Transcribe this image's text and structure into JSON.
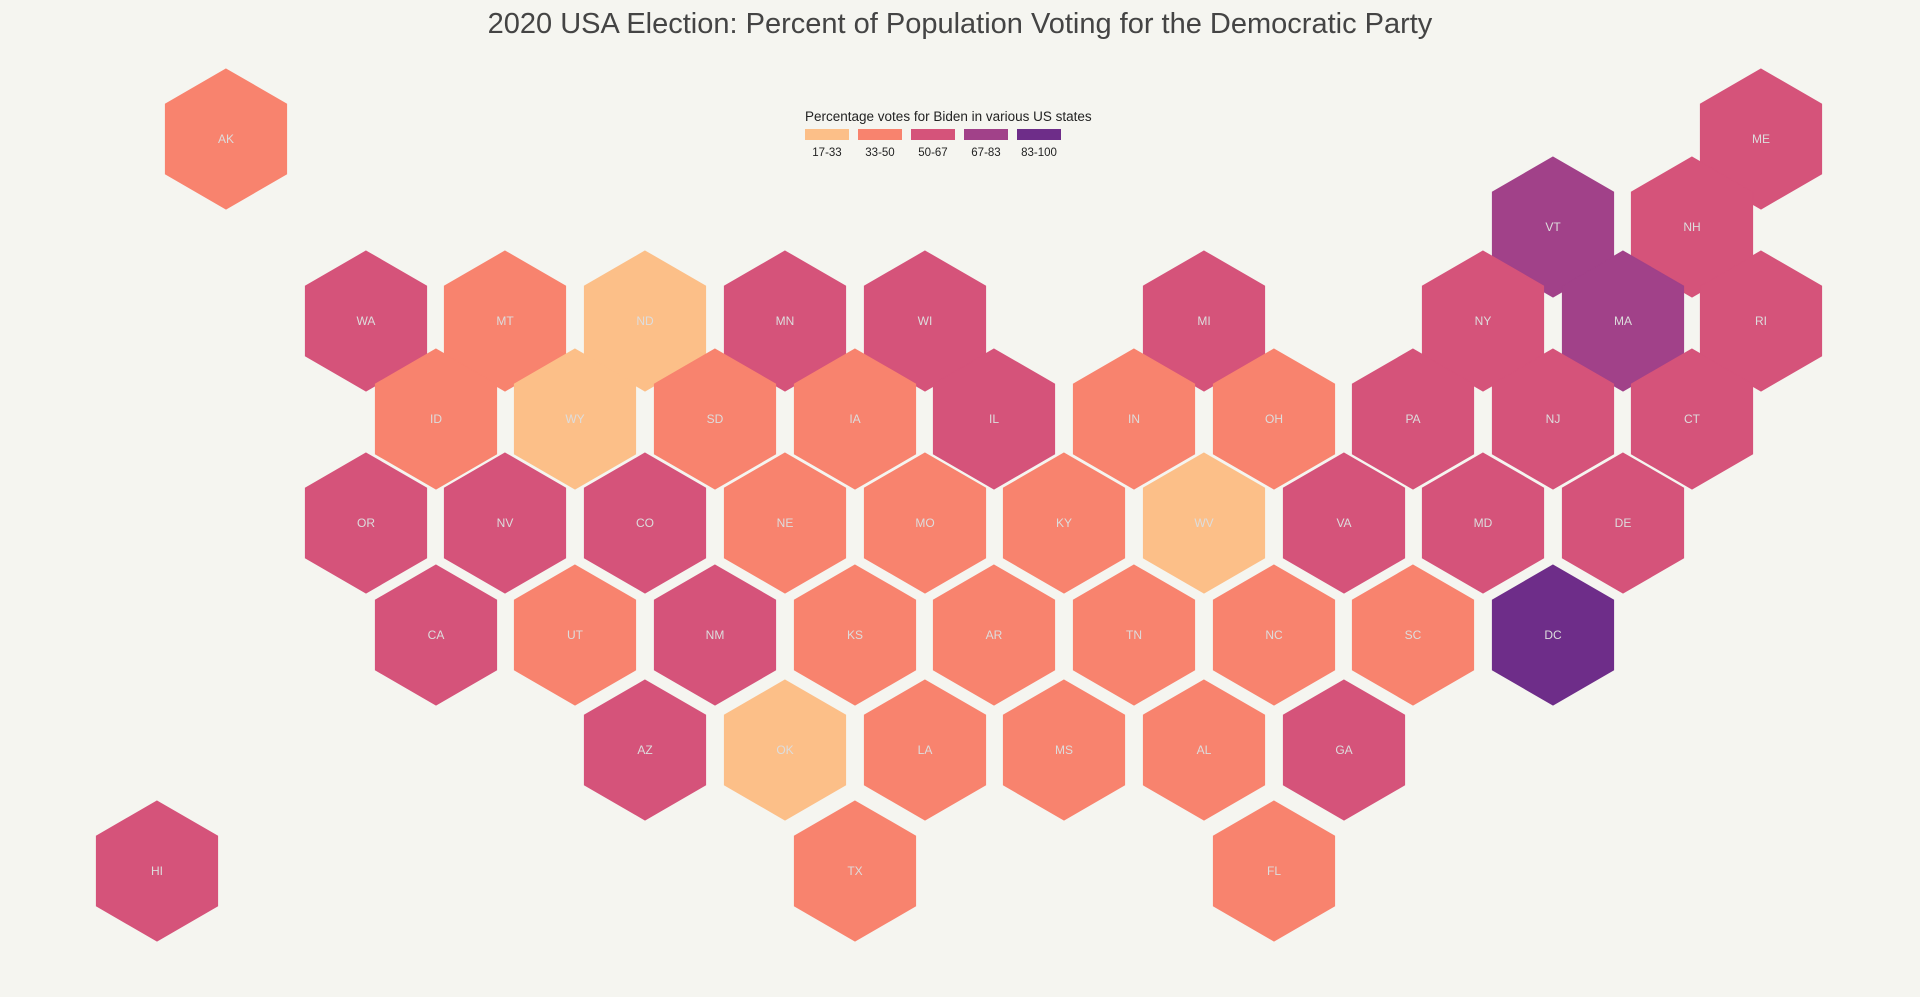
{
  "title": "2020 USA Election: Percent of Population Voting for the Democratic Party",
  "legend": {
    "title": "Percentage votes for Biden in various US states",
    "bins": [
      {
        "label": "17-33",
        "color": "#fcbf88"
      },
      {
        "label": "33-50",
        "color": "#f8836e"
      },
      {
        "label": "50-67",
        "color": "#d5537a"
      },
      {
        "label": "67-83",
        "color": "#a14189"
      },
      {
        "label": "83-100",
        "color": "#6e2d89"
      }
    ]
  },
  "chart_data": {
    "type": "hex-tile-map",
    "title": "2020 USA Election: Percent of Population Voting for the Democratic Party",
    "legend_title": "Percentage votes for Biden in various US states",
    "states": [
      {
        "abbr": "AK",
        "bin": "33-50"
      },
      {
        "abbr": "ME",
        "bin": "50-67"
      },
      {
        "abbr": "VT",
        "bin": "67-83"
      },
      {
        "abbr": "NH",
        "bin": "50-67"
      },
      {
        "abbr": "WA",
        "bin": "50-67"
      },
      {
        "abbr": "MT",
        "bin": "33-50"
      },
      {
        "abbr": "ND",
        "bin": "17-33"
      },
      {
        "abbr": "MN",
        "bin": "50-67"
      },
      {
        "abbr": "WI",
        "bin": "50-67"
      },
      {
        "abbr": "MI",
        "bin": "50-67"
      },
      {
        "abbr": "NY",
        "bin": "50-67"
      },
      {
        "abbr": "MA",
        "bin": "67-83"
      },
      {
        "abbr": "RI",
        "bin": "50-67"
      },
      {
        "abbr": "ID",
        "bin": "33-50"
      },
      {
        "abbr": "WY",
        "bin": "17-33"
      },
      {
        "abbr": "SD",
        "bin": "33-50"
      },
      {
        "abbr": "IA",
        "bin": "33-50"
      },
      {
        "abbr": "IL",
        "bin": "50-67"
      },
      {
        "abbr": "IN",
        "bin": "33-50"
      },
      {
        "abbr": "OH",
        "bin": "33-50"
      },
      {
        "abbr": "PA",
        "bin": "50-67"
      },
      {
        "abbr": "NJ",
        "bin": "50-67"
      },
      {
        "abbr": "CT",
        "bin": "50-67"
      },
      {
        "abbr": "OR",
        "bin": "50-67"
      },
      {
        "abbr": "NV",
        "bin": "50-67"
      },
      {
        "abbr": "CO",
        "bin": "50-67"
      },
      {
        "abbr": "NE",
        "bin": "33-50"
      },
      {
        "abbr": "MO",
        "bin": "33-50"
      },
      {
        "abbr": "KY",
        "bin": "33-50"
      },
      {
        "abbr": "WV",
        "bin": "17-33"
      },
      {
        "abbr": "VA",
        "bin": "50-67"
      },
      {
        "abbr": "MD",
        "bin": "50-67"
      },
      {
        "abbr": "DE",
        "bin": "50-67"
      },
      {
        "abbr": "CA",
        "bin": "50-67"
      },
      {
        "abbr": "UT",
        "bin": "33-50"
      },
      {
        "abbr": "NM",
        "bin": "50-67"
      },
      {
        "abbr": "KS",
        "bin": "33-50"
      },
      {
        "abbr": "AR",
        "bin": "33-50"
      },
      {
        "abbr": "TN",
        "bin": "33-50"
      },
      {
        "abbr": "NC",
        "bin": "33-50"
      },
      {
        "abbr": "SC",
        "bin": "33-50"
      },
      {
        "abbr": "DC",
        "bin": "83-100"
      },
      {
        "abbr": "AZ",
        "bin": "50-67"
      },
      {
        "abbr": "OK",
        "bin": "17-33"
      },
      {
        "abbr": "LA",
        "bin": "33-50"
      },
      {
        "abbr": "MS",
        "bin": "33-50"
      },
      {
        "abbr": "AL",
        "bin": "33-50"
      },
      {
        "abbr": "GA",
        "bin": "50-67"
      },
      {
        "abbr": "HI",
        "bin": "50-67"
      },
      {
        "abbr": "TX",
        "bin": "33-50"
      },
      {
        "abbr": "FL",
        "bin": "33-50"
      }
    ]
  }
}
